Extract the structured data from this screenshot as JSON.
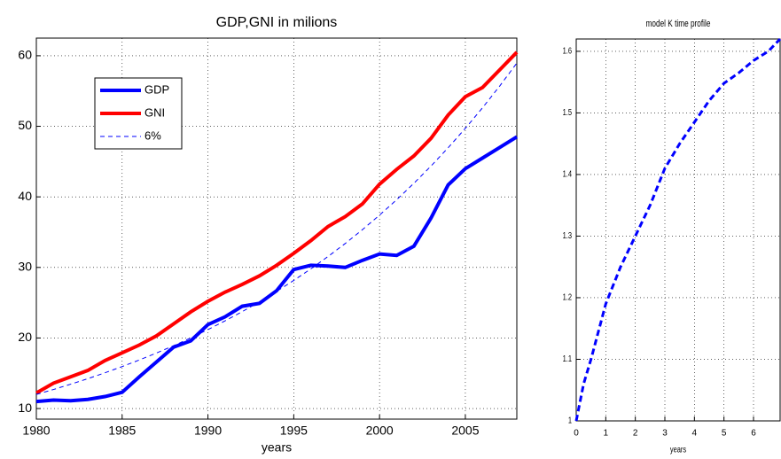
{
  "chart_data": [
    {
      "type": "line",
      "title": "GDP,GNI in milions",
      "xlabel": "years",
      "x": [
        1980,
        1981,
        1982,
        1983,
        1984,
        1985,
        1986,
        1987,
        1988,
        1989,
        1990,
        1991,
        1992,
        1993,
        1994,
        1995,
        1996,
        1997,
        1998,
        1999,
        2000,
        2001,
        2002,
        2003,
        2004,
        2005,
        2006,
        2007,
        2008
      ],
      "series": [
        {
          "name": "GDP",
          "color": "#0000ff",
          "width": 4,
          "dash": false,
          "values": [
            11.0,
            11.2,
            11.1,
            11.3,
            11.7,
            12.3,
            14.5,
            16.6,
            18.7,
            19.6,
            21.9,
            23.0,
            24.5,
            24.9,
            26.7,
            29.7,
            30.3,
            30.2,
            30.0,
            31.0,
            31.9,
            31.7,
            33.0,
            37.0,
            41.7,
            44.0,
            45.5,
            47.0,
            48.5
          ]
        },
        {
          "name": "GNI",
          "color": "#ff0000",
          "width": 4,
          "dash": false,
          "values": [
            12.2,
            13.6,
            14.5,
            15.4,
            16.8,
            17.9,
            19.0,
            20.3,
            22.0,
            23.7,
            25.2,
            26.5,
            27.6,
            28.8,
            30.3,
            32.0,
            33.8,
            35.8,
            37.2,
            39.0,
            41.8,
            43.9,
            45.8,
            48.3,
            51.6,
            54.2,
            55.5,
            58.0,
            60.5
          ]
        },
        {
          "name": "6%",
          "color": "#0000ff",
          "width": 1,
          "dash": true,
          "values": [
            12.0,
            12.7,
            13.45,
            14.23,
            15.07,
            15.95,
            16.88,
            17.87,
            18.91,
            20.02,
            21.19,
            22.43,
            23.74,
            25.13,
            26.6,
            28.16,
            29.8,
            31.55,
            33.39,
            35.35,
            37.41,
            39.6,
            41.92,
            44.37,
            46.97,
            49.71,
            52.62,
            55.7,
            58.96
          ]
        }
      ],
      "xlim": [
        1980,
        2008
      ],
      "xticks": [
        1980,
        1985,
        1990,
        1995,
        2000,
        2005
      ],
      "ylim": [
        8.5,
        62.5
      ],
      "yticks": [
        10,
        20,
        30,
        40,
        50,
        60
      ],
      "grid": true,
      "legend": "upper left"
    },
    {
      "type": "line",
      "title": "model K time profile",
      "xlabel": "years",
      "x": [
        0,
        0.25,
        0.5,
        1,
        1.5,
        2,
        2.5,
        3,
        3.5,
        4,
        4.5,
        5,
        5.5,
        6,
        6.5,
        6.9
      ],
      "series": [
        {
          "color": "#0000ff",
          "width": 3,
          "dash": true,
          "values": [
            1.0,
            1.06,
            1.1,
            1.19,
            1.25,
            1.3,
            1.35,
            1.41,
            1.45,
            1.485,
            1.52,
            1.548,
            1.565,
            1.585,
            1.6,
            1.62
          ]
        }
      ],
      "xlim": [
        0,
        6.9
      ],
      "xticks": [
        0,
        1,
        2,
        3,
        4,
        5,
        6
      ],
      "ylim": [
        1,
        1.62
      ],
      "yticks": [
        1,
        1.1,
        1.2,
        1.3,
        1.4,
        1.5,
        1.6
      ],
      "grid": true
    }
  ]
}
